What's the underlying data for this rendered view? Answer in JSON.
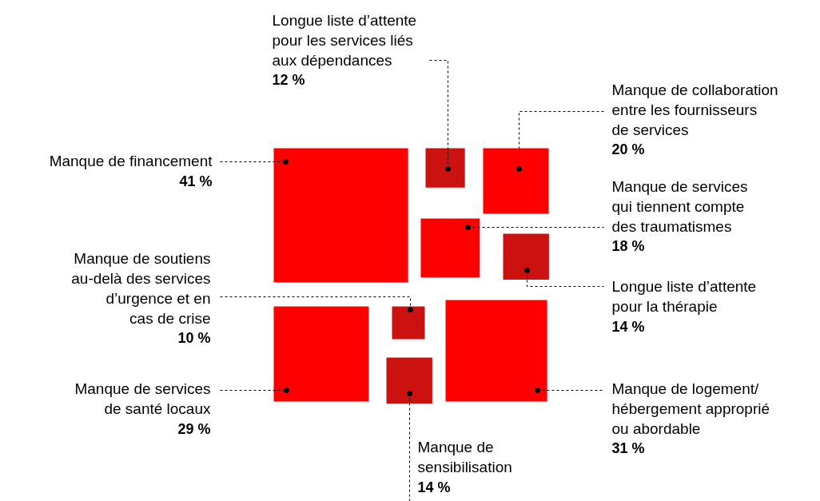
{
  "chart_data": {
    "type": "other",
    "categories": [
      "Manque de financement",
      "Longue liste d’attente\npour les services liés\naux dépendances",
      "Manque de collaboration\nentre les fournisseurs\nde services",
      "Manque de services\nqui tiennent compte\ndes traumatismes",
      "Longue liste d’attente\npour la thérapie",
      "Manque de soutiens\nau-delà des services\nd’urgence et en\ncas de crise",
      "Manque de services\nde santé locaux",
      "Manque de logement/\nhébergement approprié\nou abordable",
      "Manque de\nsensibilisation"
    ],
    "values": [
      41,
      12,
      20,
      18,
      14,
      10,
      29,
      31,
      14
    ],
    "value_labels": [
      "41 %",
      "12 %",
      "20 %",
      "18 %",
      "14 %",
      "10 %",
      "29 %",
      "31 %",
      "14 %"
    ],
    "colors": [
      "#ff0000",
      "#cc1111",
      "#ff0000",
      "#ff0000",
      "#cc1111",
      "#cc1111",
      "#ff0000",
      "#ff0000",
      "#cc1111"
    ]
  }
}
